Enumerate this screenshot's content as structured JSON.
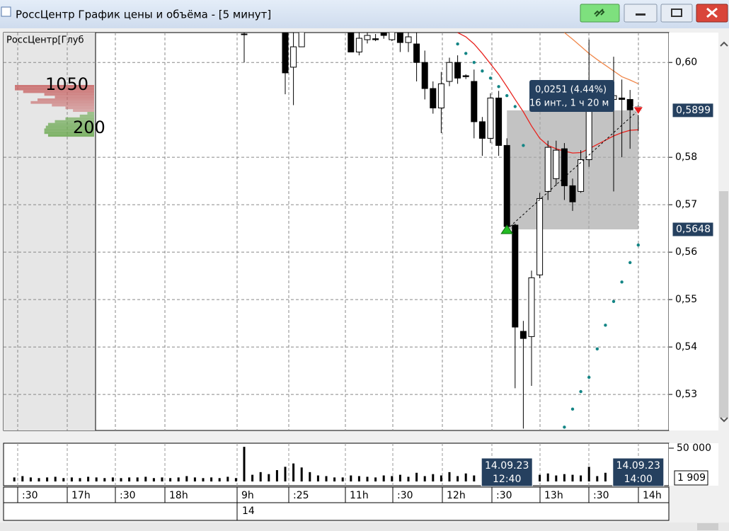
{
  "window": {
    "title": "РоссЦентр График цены и объёма - [5 минут]"
  },
  "chart_data": {
    "type": "candlestick",
    "open": [
      null,
      null,
      null,
      null,
      null,
      null,
      null,
      null,
      null,
      null,
      null,
      null,
      null,
      null,
      null,
      null,
      null,
      null,
      null,
      null,
      null,
      null,
      null,
      null,
      null,
      null,
      null,
      null,
      0.606,
      null,
      null,
      null,
      null,
      0.607,
      0.599,
      0.6033,
      null,
      null,
      null,
      null,
      null,
      0.607,
      0.6022,
      0.6048,
      0.605,
      0.607,
      0.6048,
      0.607,
      0.6042,
      0.6039,
      0.6,
      0.5945,
      0.5904,
      0.596,
      0.6,
      0.5972,
      0.596,
      0.5875,
      0.584,
      0.5925,
      0.5825,
      0.5657,
      0.5433,
      0.5422,
      0.5552,
      0.5728,
      0.5755,
      0.5818,
      0.574,
      0.5728,
      0.5795,
      0.5937,
      null,
      0.5922,
      0.5925,
      0.5922,
      0.5907
    ],
    "high": [
      null,
      null,
      null,
      null,
      null,
      null,
      null,
      null,
      null,
      null,
      null,
      null,
      null,
      null,
      null,
      null,
      null,
      null,
      null,
      null,
      null,
      null,
      null,
      null,
      null,
      null,
      null,
      null,
      0.607,
      null,
      null,
      null,
      null,
      0.607,
      0.607,
      0.607,
      null,
      null,
      null,
      null,
      null,
      0.607,
      0.607,
      0.607,
      0.606,
      0.607,
      0.607,
      0.607,
      0.607,
      0.607,
      0.6025,
      0.596,
      0.598,
      0.601,
      0.6015,
      0.5975,
      0.5985,
      0.5885,
      0.5935,
      0.594,
      0.584,
      0.566,
      0.5455,
      0.5561,
      0.5725,
      0.5835,
      0.5835,
      0.583,
      0.5755,
      0.5815,
      0.6048,
      0.5955,
      null,
      0.6012,
      0.5964,
      0.5942,
      0.591
    ],
    "low": [
      null,
      null,
      null,
      null,
      null,
      null,
      null,
      null,
      null,
      null,
      null,
      null,
      null,
      null,
      null,
      null,
      null,
      null,
      null,
      null,
      null,
      null,
      null,
      null,
      null,
      null,
      null,
      null,
      0.6,
      null,
      null,
      null,
      null,
      0.5933,
      0.591,
      0.6033,
      null,
      null,
      null,
      null,
      null,
      0.6022,
      0.6015,
      0.604,
      0.6045,
      0.605,
      0.6045,
      0.6022,
      0.6022,
      0.596,
      0.5922,
      0.5892,
      0.5851,
      0.595,
      0.5955,
      0.5965,
      0.584,
      0.5803,
      0.583,
      0.5803,
      0.564,
      0.5313,
      0.5228,
      0.5318,
      0.5545,
      0.571,
      0.574,
      0.571,
      0.5687,
      0.5725,
      0.578,
      0.592,
      null,
      0.5728,
      0.58,
      0.5818,
      0.5855
    ],
    "close": [
      null,
      null,
      null,
      null,
      null,
      null,
      null,
      null,
      null,
      null,
      null,
      null,
      null,
      null,
      null,
      null,
      null,
      null,
      null,
      null,
      null,
      null,
      null,
      null,
      null,
      null,
      null,
      null,
      0.606,
      null,
      null,
      null,
      null,
      0.5978,
      0.6033,
      0.607,
      null,
      null,
      null,
      null,
      null,
      0.6022,
      0.6051,
      0.6057,
      0.6048,
      0.6057,
      0.607,
      0.6042,
      0.6054,
      0.6,
      0.5945,
      0.5904,
      0.5955,
      0.6,
      0.5967,
      0.597,
      0.5875,
      0.584,
      0.5925,
      0.5825,
      0.5654,
      0.5442,
      0.5418,
      0.5546,
      0.5713,
      0.5821,
      0.5815,
      0.574,
      0.5706,
      0.5795,
      0.5937,
      0.594,
      null,
      0.593,
      0.5922,
      0.59,
      0.5899
    ],
    "up_color": "#ffffff",
    "down_color": "#000000",
    "ylim": [
      0.5224,
      0.6063
    ],
    "yticks": [
      {
        "value": 0.53,
        "label": "0,53"
      },
      {
        "value": 0.54,
        "label": "0,54"
      },
      {
        "value": 0.55,
        "label": "0,55"
      },
      {
        "value": 0.56,
        "label": "0,56"
      },
      {
        "value": 0.57,
        "label": "0,57"
      },
      {
        "value": 0.58,
        "label": "0,58"
      },
      {
        "value": 0.6,
        "label": "0,60"
      }
    ],
    "grid": true,
    "overlays": [
      {
        "type": "line",
        "color": "#e8231e",
        "values": [
          null,
          null,
          null,
          null,
          null,
          null,
          null,
          null,
          null,
          null,
          null,
          null,
          null,
          null,
          null,
          null,
          null,
          null,
          null,
          null,
          null,
          null,
          null,
          null,
          null,
          null,
          null,
          null,
          null,
          null,
          null,
          null,
          null,
          null,
          null,
          null,
          null,
          null,
          null,
          null,
          null,
          null,
          null,
          null,
          null,
          null,
          null,
          null,
          null,
          null,
          null,
          null,
          null,
          null,
          0.6063,
          0.6054,
          0.6039,
          0.6019,
          0.5997,
          0.5975,
          0.5949,
          0.5922,
          0.5896,
          0.5866,
          0.584,
          0.5825,
          0.5818,
          0.5813,
          0.5809,
          0.581,
          0.5818,
          0.5827,
          0.5836,
          0.5845,
          0.5852,
          0.5857,
          0.5858
        ]
      },
      {
        "type": "line",
        "color": "#f0874a",
        "values": [
          null,
          null,
          null,
          null,
          null,
          null,
          null,
          null,
          null,
          null,
          null,
          null,
          null,
          null,
          null,
          null,
          null,
          null,
          null,
          null,
          null,
          null,
          null,
          null,
          null,
          null,
          null,
          null,
          null,
          null,
          null,
          null,
          null,
          null,
          null,
          null,
          null,
          null,
          null,
          null,
          null,
          null,
          null,
          null,
          null,
          null,
          null,
          null,
          null,
          null,
          null,
          null,
          null,
          null,
          null,
          null,
          null,
          null,
          null,
          null,
          null,
          null,
          null,
          null,
          null,
          null,
          null,
          0.6063,
          0.6049,
          0.6034,
          0.6019,
          0.6006,
          0.5994,
          0.5982,
          0.597,
          0.5963,
          0.5955
        ]
      },
      {
        "type": "scatter",
        "color": "#138585",
        "values": [
          null,
          null,
          null,
          null,
          null,
          null,
          null,
          null,
          null,
          null,
          null,
          null,
          null,
          null,
          null,
          null,
          null,
          null,
          null,
          null,
          null,
          null,
          null,
          null,
          null,
          null,
          null,
          null,
          null,
          null,
          null,
          null,
          null,
          null,
          null,
          null,
          null,
          null,
          null,
          null,
          null,
          null,
          null,
          null,
          null,
          null,
          null,
          null,
          null,
          null,
          null,
          null,
          null,
          null,
          0.6039,
          0.6019,
          0.6,
          0.5982,
          0.5967,
          0.5949,
          0.593,
          0.5907,
          0.5825,
          null,
          null,
          null,
          null,
          0.5231,
          0.5269,
          0.5306,
          0.5336,
          0.5396,
          0.5446,
          0.5496,
          0.5537,
          0.5578,
          0.5615
        ]
      }
    ],
    "measure": {
      "low": 0.5648,
      "high": 0.5899,
      "low_label": "0,5648",
      "high_label": "0,5899",
      "change_label": "0,0251 (4.44%)",
      "span_label": "16 инт., 1 ч 20 м",
      "start": [
        "14.09.23",
        "12:40"
      ],
      "end": [
        "14.09.23",
        "14:00"
      ]
    },
    "volume": {
      "type": "bar",
      "color": "#000000",
      "values": [
        6000,
        8000,
        6000,
        5000,
        6000,
        7000,
        5000,
        6000,
        5000,
        7000,
        6000,
        5000,
        6000,
        5000,
        6000,
        6000,
        7000,
        5000,
        6000,
        5000,
        6000,
        8000,
        6000,
        5000,
        6000,
        5000,
        7000,
        5000,
        52000,
        10000,
        14000,
        11000,
        17000,
        22000,
        27000,
        21000,
        14000,
        9000,
        8000,
        6000,
        6000,
        9000,
        8000,
        7000,
        6000,
        9000,
        8000,
        10000,
        7000,
        13000,
        8000,
        11000,
        9000,
        14000,
        8000,
        12000,
        9000,
        10000,
        11000,
        13000,
        14000,
        9000,
        8000,
        7000,
        10000,
        12000,
        9000,
        11000,
        10000,
        9000,
        22000,
        8000,
        13000,
        10000,
        6000,
        7000,
        1909
      ],
      "ylim": [
        0,
        50000
      ],
      "yticks": [
        {
          "value": 50000,
          "label": "50 000"
        }
      ],
      "last_label": "1 909"
    },
    "x_labels": [
      ":30",
      "17h",
      ":30",
      "18h",
      "9h",
      ":25",
      "11h",
      ":30",
      "12h",
      ":30",
      "13h",
      ":30",
      "14h"
    ],
    "day_label": "14",
    "depth": {
      "title": "РоссЦентр[Глуб",
      "ask_label": 1050,
      "bid_label": 200,
      "ask_color": "#c86464",
      "bid_color": "#6aa84f",
      "asks": [
        1050,
        1050,
        940,
        660,
        520,
        750,
        840,
        560,
        380,
        280
      ],
      "bids": [
        90,
        190,
        380,
        520,
        610,
        640,
        660,
        660,
        610
      ]
    }
  }
}
